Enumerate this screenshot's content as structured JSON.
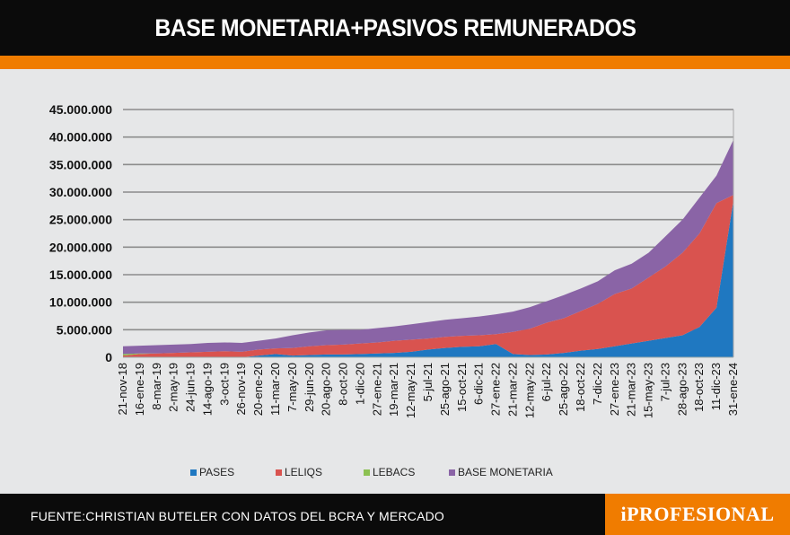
{
  "title": "BASE MONETARIA+PASIVOS REMUNERADOS",
  "source": "FUENTE:CHRISTIAN BUTELER CON DATOS DEL BCRA Y MERCADO",
  "logo": "iPROFESIONAL",
  "colors": {
    "header": "#0b0b0b",
    "accent": "#f07c00",
    "background": "#e6e7e8"
  },
  "chart_data": {
    "type": "area",
    "stacked": true,
    "title": "",
    "xlabel": "",
    "ylabel": "",
    "ylim": [
      0,
      45000000
    ],
    "yticks": [
      0,
      5000000,
      10000000,
      15000000,
      20000000,
      25000000,
      30000000,
      35000000,
      40000000,
      45000000
    ],
    "ytick_labels": [
      "0",
      "5.000.000",
      "10.000.000",
      "15.000.000",
      "20.000.000",
      "25.000.000",
      "30.000.000",
      "35.000.000",
      "40.000.000",
      "45.000.000"
    ],
    "grid": true,
    "legend_position": "bottom",
    "categories": [
      "21-nov-18",
      "16-ene-19",
      "8-mar-19",
      "2-may-19",
      "24-jun-19",
      "14-ago-19",
      "3-oct-19",
      "26-nov-19",
      "20-ene-20",
      "11-mar-20",
      "7-may-20",
      "29-jun-20",
      "20-ago-20",
      "8-oct-20",
      "1-dic-20",
      "27-ene-21",
      "19-mar-21",
      "12-may-21",
      "5-jul-21",
      "25-ago-21",
      "15-oct-21",
      "6-dic-21",
      "27-ene-22",
      "21-mar-22",
      "12-may-22",
      "6-jul-22",
      "25-ago-22",
      "18-oct-22",
      "7-dic-22",
      "27-ene-23",
      "21-mar-23",
      "15-may-23",
      "7-jul-23",
      "28-ago-23",
      "18-oct-23",
      "11-dic-23",
      "31-ene-24"
    ],
    "series": [
      {
        "name": "PASES",
        "color": "#1f78c1",
        "values": [
          0,
          0,
          0,
          0,
          0,
          0,
          0,
          0,
          300000,
          600000,
          300000,
          400000,
          500000,
          500000,
          600000,
          700000,
          800000,
          1000000,
          1400000,
          1700000,
          1900000,
          2000000,
          2400000,
          600000,
          400000,
          500000,
          800000,
          1200000,
          1500000,
          2000000,
          2500000,
          3000000,
          3500000,
          4000000,
          5500000,
          9000000,
          28500000
        ]
      },
      {
        "name": "LELIQS",
        "color": "#d9534f",
        "values": [
          300000,
          600000,
          700000,
          800000,
          900000,
          1000000,
          1100000,
          1000000,
          1100000,
          1000000,
          1400000,
          1600000,
          1700000,
          1800000,
          1900000,
          2000000,
          2200000,
          2200000,
          2000000,
          2000000,
          2000000,
          2000000,
          1800000,
          4000000,
          4800000,
          5800000,
          6300000,
          7200000,
          8200000,
          9500000,
          10000000,
          11500000,
          13000000,
          15000000,
          17000000,
          19000000,
          1000000
        ]
      },
      {
        "name": "LEBACS",
        "color": "#8cc152",
        "values": [
          300000,
          100000,
          0,
          0,
          0,
          0,
          0,
          0,
          0,
          0,
          0,
          0,
          0,
          0,
          0,
          0,
          0,
          0,
          0,
          0,
          0,
          0,
          0,
          0,
          0,
          0,
          0,
          0,
          0,
          0,
          0,
          0,
          0,
          0,
          0,
          0,
          0
        ]
      },
      {
        "name": "BASE MONETARIA",
        "color": "#8a64a6",
        "values": [
          1400000,
          1400000,
          1500000,
          1500000,
          1500000,
          1600000,
          1600000,
          1600000,
          1600000,
          1800000,
          2300000,
          2500000,
          2700000,
          2700000,
          2500000,
          2600000,
          2600000,
          2800000,
          3000000,
          3100000,
          3200000,
          3400000,
          3600000,
          3700000,
          3900000,
          3900000,
          4200000,
          4100000,
          4100000,
          4300000,
          4500000,
          4500000,
          5500000,
          6000000,
          6500000,
          5000000,
          10000000
        ]
      }
    ]
  }
}
